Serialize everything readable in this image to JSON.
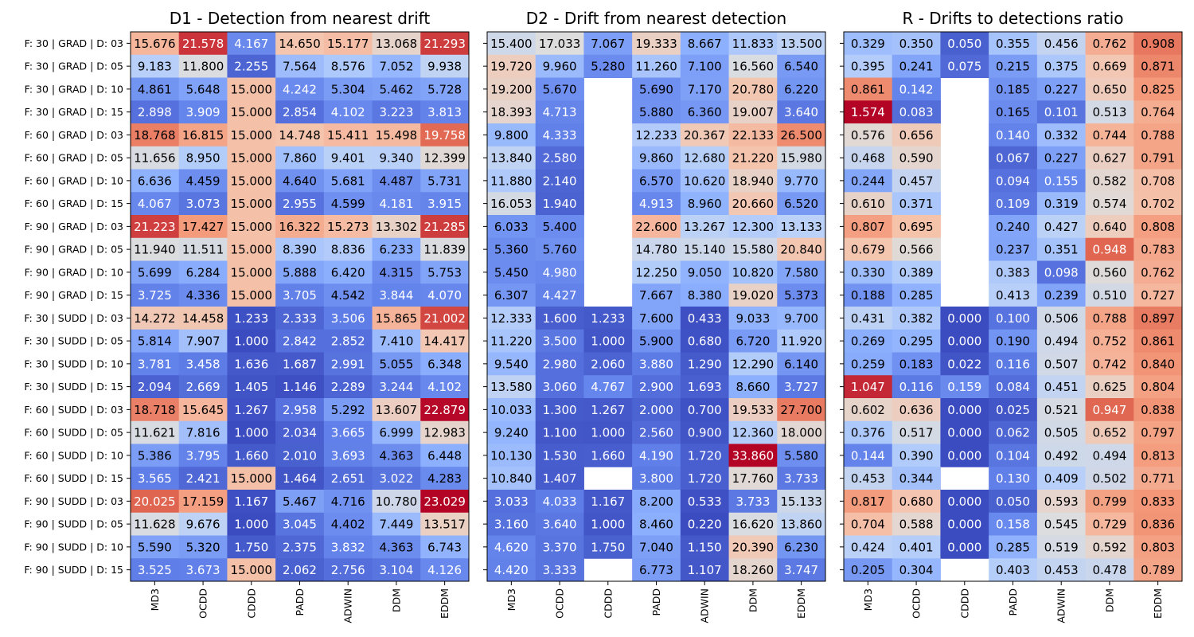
{
  "chart_data": {
    "type": "heatmap",
    "colormap": "coolwarm",
    "row_labels": [
      "F: 30 | GRAD | D: 03",
      "F: 30 | GRAD | D: 05",
      "F: 30 | GRAD | D: 10",
      "F: 30 | GRAD | D: 15",
      "F: 60 | GRAD | D: 03",
      "F: 60 | GRAD | D: 05",
      "F: 60 | GRAD | D: 10",
      "F: 60 | GRAD | D: 15",
      "F: 90 | GRAD | D: 03",
      "F: 90 | GRAD | D: 05",
      "F: 90 | GRAD | D: 10",
      "F: 90 | GRAD | D: 15",
      "F: 30 | SUDD | D: 03",
      "F: 30 | SUDD | D: 05",
      "F: 30 | SUDD | D: 10",
      "F: 30 | SUDD | D: 15",
      "F: 60 | SUDD | D: 03",
      "F: 60 | SUDD | D: 05",
      "F: 60 | SUDD | D: 10",
      "F: 60 | SUDD | D: 15",
      "F: 90 | SUDD | D: 03",
      "F: 90 | SUDD | D: 05",
      "F: 90 | SUDD | D: 10",
      "F: 90 | SUDD | D: 15"
    ],
    "column_labels": [
      "MD3",
      "OCDD",
      "CDDD",
      "PADD",
      "ADWIN",
      "DDM",
      "EDDM"
    ],
    "panels": [
      {
        "title": "D1 - Detection from nearest drift",
        "vmin": 1.0,
        "vmax": 23.0,
        "values": [
          [
            15.676,
            21.578,
            4.167,
            14.65,
            15.177,
            13.068,
            21.293
          ],
          [
            9.183,
            11.8,
            2.255,
            7.564,
            8.576,
            7.052,
            9.938
          ],
          [
            4.861,
            5.648,
            15.0,
            4.242,
            5.304,
            5.462,
            5.728
          ],
          [
            2.898,
            3.909,
            15.0,
            2.854,
            4.102,
            3.223,
            3.813
          ],
          [
            18.768,
            16.815,
            15.0,
            14.748,
            15.411,
            15.498,
            19.758
          ],
          [
            11.656,
            8.95,
            15.0,
            7.86,
            9.401,
            9.34,
            12.399
          ],
          [
            6.636,
            4.459,
            15.0,
            4.64,
            5.681,
            4.487,
            5.731
          ],
          [
            4.067,
            3.073,
            15.0,
            2.955,
            4.599,
            4.181,
            3.915
          ],
          [
            21.223,
            17.427,
            15.0,
            16.322,
            15.273,
            13.302,
            21.285
          ],
          [
            11.94,
            11.511,
            15.0,
            8.39,
            8.836,
            6.233,
            11.839
          ],
          [
            5.699,
            6.284,
            15.0,
            5.888,
            6.42,
            4.315,
            5.753
          ],
          [
            3.725,
            4.336,
            15.0,
            3.705,
            4.542,
            3.844,
            4.07
          ],
          [
            14.272,
            14.458,
            1.233,
            2.333,
            3.506,
            15.865,
            21.002
          ],
          [
            5.814,
            7.907,
            1.0,
            2.842,
            2.852,
            7.41,
            14.417
          ],
          [
            3.781,
            3.458,
            1.636,
            1.687,
            2.991,
            5.055,
            6.348
          ],
          [
            2.094,
            2.669,
            1.405,
            1.146,
            2.289,
            3.244,
            4.102
          ],
          [
            18.718,
            15.645,
            1.267,
            2.958,
            5.292,
            13.607,
            22.879
          ],
          [
            11.621,
            7.816,
            1.0,
            2.034,
            3.665,
            6.999,
            12.983
          ],
          [
            5.386,
            3.795,
            1.66,
            2.01,
            3.693,
            4.363,
            6.448
          ],
          [
            3.565,
            2.421,
            15.0,
            1.464,
            2.651,
            3.022,
            4.283
          ],
          [
            20.025,
            17.159,
            1.167,
            5.467,
            4.716,
            10.78,
            23.029
          ],
          [
            11.628,
            9.676,
            1.0,
            3.045,
            4.402,
            7.449,
            13.517
          ],
          [
            5.59,
            5.32,
            1.75,
            2.375,
            3.832,
            4.363,
            6.743
          ],
          [
            3.525,
            3.673,
            15.0,
            2.062,
            2.756,
            3.104,
            4.126
          ]
        ]
      },
      {
        "title": "D2 - Drift from nearest detection",
        "vmin": 0.22,
        "vmax": 33.86,
        "values": [
          [
            15.4,
            17.033,
            7.067,
            19.333,
            8.667,
            11.833,
            13.5
          ],
          [
            19.72,
            9.96,
            5.28,
            11.26,
            7.1,
            16.56,
            6.54
          ],
          [
            19.2,
            5.67,
            null,
            5.69,
            7.17,
            20.78,
            6.22
          ],
          [
            18.393,
            4.713,
            null,
            5.88,
            6.36,
            19.007,
            3.64
          ],
          [
            9.8,
            4.333,
            null,
            12.233,
            20.367,
            22.133,
            26.5
          ],
          [
            13.84,
            2.58,
            null,
            9.86,
            12.68,
            21.22,
            15.98
          ],
          [
            11.88,
            2.14,
            null,
            6.57,
            10.62,
            18.94,
            9.77
          ],
          [
            16.053,
            1.94,
            null,
            4.913,
            8.96,
            20.66,
            6.52
          ],
          [
            6.033,
            5.4,
            null,
            22.6,
            13.267,
            12.3,
            13.133
          ],
          [
            5.36,
            5.76,
            null,
            14.78,
            15.14,
            15.58,
            20.84
          ],
          [
            5.45,
            4.98,
            null,
            12.25,
            9.05,
            10.82,
            7.58
          ],
          [
            6.307,
            4.427,
            null,
            7.667,
            8.38,
            19.02,
            5.373
          ],
          [
            12.333,
            1.6,
            1.233,
            7.6,
            0.433,
            9.033,
            9.7
          ],
          [
            11.22,
            3.5,
            1.0,
            5.9,
            0.68,
            6.72,
            11.92
          ],
          [
            9.54,
            2.98,
            2.06,
            3.88,
            1.29,
            12.29,
            6.14
          ],
          [
            13.58,
            3.06,
            4.767,
            2.9,
            1.693,
            8.66,
            3.727
          ],
          [
            10.033,
            1.3,
            1.267,
            2.0,
            0.7,
            19.533,
            27.7
          ],
          [
            9.24,
            1.1,
            1.0,
            2.56,
            0.9,
            12.36,
            18.0
          ],
          [
            10.13,
            1.53,
            1.66,
            4.19,
            1.72,
            33.86,
            5.58
          ],
          [
            10.84,
            1.407,
            null,
            3.8,
            1.72,
            17.76,
            3.733
          ],
          [
            3.033,
            4.033,
            1.167,
            8.2,
            0.533,
            3.733,
            15.133
          ],
          [
            3.16,
            3.64,
            1.0,
            8.46,
            0.22,
            16.62,
            13.86
          ],
          [
            4.62,
            3.37,
            1.75,
            7.04,
            1.15,
            20.39,
            6.23
          ],
          [
            4.42,
            3.333,
            null,
            6.773,
            1.107,
            18.26,
            3.747
          ]
        ]
      },
      {
        "title": "R - Drifts to detections ratio",
        "vmin": 0.0,
        "vmax": 1.1,
        "values": [
          [
            0.329,
            0.35,
            0.05,
            0.355,
            0.456,
            0.762,
            0.908
          ],
          [
            0.395,
            0.241,
            0.075,
            0.215,
            0.375,
            0.669,
            0.871
          ],
          [
            0.861,
            0.142,
            null,
            0.185,
            0.227,
            0.65,
            0.825
          ],
          [
            1.574,
            0.083,
            null,
            0.165,
            0.101,
            0.513,
            0.764
          ],
          [
            0.576,
            0.656,
            null,
            0.14,
            0.332,
            0.744,
            0.788
          ],
          [
            0.468,
            0.59,
            null,
            0.067,
            0.227,
            0.627,
            0.791
          ],
          [
            0.244,
            0.457,
            null,
            0.094,
            0.155,
            0.582,
            0.708
          ],
          [
            0.61,
            0.371,
            null,
            0.109,
            0.319,
            0.574,
            0.702
          ],
          [
            0.807,
            0.695,
            null,
            0.24,
            0.427,
            0.64,
            0.808
          ],
          [
            0.679,
            0.566,
            null,
            0.237,
            0.351,
            0.948,
            0.783
          ],
          [
            0.33,
            0.389,
            null,
            0.383,
            0.098,
            0.56,
            0.762
          ],
          [
            0.188,
            0.285,
            null,
            0.413,
            0.239,
            0.51,
            0.727
          ],
          [
            0.431,
            0.382,
            0.0,
            0.1,
            0.506,
            0.788,
            0.897
          ],
          [
            0.269,
            0.295,
            0.0,
            0.19,
            0.494,
            0.752,
            0.861
          ],
          [
            0.259,
            0.183,
            0.022,
            0.116,
            0.507,
            0.742,
            0.84
          ],
          [
            1.047,
            0.116,
            0.159,
            0.084,
            0.451,
            0.625,
            0.804
          ],
          [
            0.602,
            0.636,
            0.0,
            0.025,
            0.521,
            0.947,
            0.838
          ],
          [
            0.376,
            0.517,
            0.0,
            0.062,
            0.505,
            0.652,
            0.797
          ],
          [
            0.144,
            0.39,
            0.0,
            0.104,
            0.492,
            0.494,
            0.813
          ],
          [
            0.453,
            0.344,
            null,
            0.13,
            0.409,
            0.502,
            0.771
          ],
          [
            0.817,
            0.68,
            0.0,
            0.05,
            0.593,
            0.799,
            0.833
          ],
          [
            0.704,
            0.588,
            0.0,
            0.158,
            0.545,
            0.729,
            0.836
          ],
          [
            0.424,
            0.401,
            0.0,
            0.285,
            0.519,
            0.592,
            0.803
          ],
          [
            0.205,
            0.304,
            null,
            0.403,
            0.453,
            0.478,
            0.789
          ]
        ]
      }
    ]
  }
}
